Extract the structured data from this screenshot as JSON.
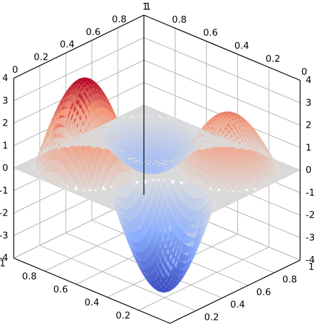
{
  "chart_data": {
    "type": "surface",
    "title": "",
    "xlabel": "",
    "ylabel": "",
    "zlabel": "",
    "colormap": "coolwarm",
    "plane_color": "#d9d9d9",
    "plane_z": 0,
    "x_range": [
      0,
      1
    ],
    "y_range": [
      0,
      1
    ],
    "z_range": [
      -4,
      4
    ],
    "xticks": [
      "0",
      "0.2",
      "0.4",
      "0.6",
      "0.8",
      "1"
    ],
    "yticks": [
      "0",
      "0.2",
      "0.4",
      "0.6",
      "0.8",
      "1"
    ],
    "zticks": [
      "-4",
      "-3",
      "-2",
      "-1",
      "0",
      "1",
      "2",
      "3",
      "4"
    ],
    "features": [
      {
        "kind": "peak",
        "x": 0.75,
        "y": 0.25,
        "z": 4.0
      },
      {
        "kind": "peak",
        "x": 0.25,
        "y": 0.75,
        "z": 2.5
      },
      {
        "kind": "trough",
        "x": 0.25,
        "y": 0.25,
        "z": -4.0
      },
      {
        "kind": "trough",
        "x": 0.75,
        "y": 0.75,
        "z": -1.5
      }
    ]
  }
}
